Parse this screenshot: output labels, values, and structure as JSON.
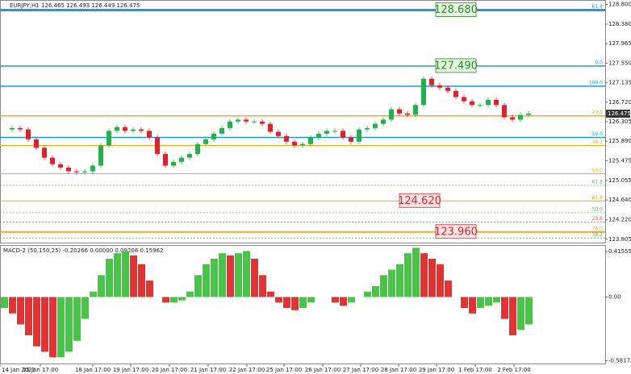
{
  "chart_data": {
    "type": "candlestick",
    "title": "EURJPY,H1  126.465 126.493 126.449 126.475",
    "close": [
      126.14,
      126.17,
      126.14,
      125.93,
      125.75,
      125.54,
      125.4,
      125.33,
      125.25,
      125.23,
      125.25,
      125.37,
      125.8,
      126.11,
      126.19,
      126.11,
      126.14,
      126.11,
      125.97,
      125.62,
      125.37,
      125.45,
      125.54,
      125.62,
      125.83,
      125.93,
      126.05,
      126.17,
      126.31,
      126.35,
      126.31,
      126.31,
      126.26,
      126.09,
      126.0,
      125.88,
      125.8,
      125.83,
      125.97,
      126.05,
      126.11,
      126.11,
      125.97,
      125.88,
      126.14,
      126.17,
      126.26,
      126.35,
      126.57,
      126.48,
      126.45,
      126.66,
      127.22,
      127.08,
      127.03,
      126.96,
      126.83,
      126.74,
      126.66,
      126.66,
      126.77,
      126.66,
      126.4,
      126.35,
      126.45,
      126.48
    ],
    "up_color": "#22b14c",
    "down_color": "#e0202a",
    "current_price": {
      "value": 126.475,
      "label": "126.475"
    },
    "ylim": [
      123.75,
      128.86
    ],
    "yticks": [
      {
        "value": 128.8,
        "label": "128.800"
      },
      {
        "value": 128.38,
        "label": "128.380"
      },
      {
        "value": 127.965,
        "label": "127.965"
      },
      {
        "value": 127.55,
        "label": "127.550"
      },
      {
        "value": 127.135,
        "label": "127.135"
      },
      {
        "value": 126.72,
        "label": "126.720"
      },
      {
        "value": 126.305,
        "label": "126.305"
      },
      {
        "value": 125.89,
        "label": "125.890"
      },
      {
        "value": 125.475,
        "label": "125.475"
      },
      {
        "value": 125.055,
        "label": "125.055"
      },
      {
        "value": 124.64,
        "label": "124.640"
      },
      {
        "value": 124.22,
        "label": "124.220"
      },
      {
        "value": 123.805,
        "label": "123.805"
      }
    ],
    "xticks": [
      {
        "value": 0,
        "label": "14 Jan 2021"
      },
      {
        "value": 5,
        "label": "15 Jan 17:00"
      },
      {
        "value": 11.5,
        "label": "18 Jan 17:00"
      },
      {
        "value": 16.2,
        "label": "19 Jan 17:00"
      },
      {
        "value": 21,
        "label": "20 Jan 17:00"
      },
      {
        "value": 25.8,
        "label": "21 Jan 17:00"
      },
      {
        "value": 30.6,
        "label": "22 Jan 17:00"
      },
      {
        "value": 35.2,
        "label": "25 Jan 17:00"
      },
      {
        "value": 40,
        "label": "26 Jan 17:00"
      },
      {
        "value": 44.7,
        "label": "27 Jan 17:00"
      },
      {
        "value": 49.4,
        "label": "28 Jan 17:00"
      },
      {
        "value": 54.1,
        "label": "29 Jan 17:00"
      },
      {
        "value": 58.9,
        "label": "1 Feb 17:00"
      },
      {
        "value": 63.7,
        "label": "2 Feb 17:00"
      }
    ],
    "levels": [
      {
        "value": 128.68,
        "color": "#1e9ad6",
        "width": 3,
        "label": "61.8",
        "box_label": "128.680",
        "box_color": "#2e8b2e"
      },
      {
        "value": 127.49,
        "color": "#1e9ad6",
        "width": 1.5,
        "label": "0.0",
        "box_label": "127.490",
        "box_color": "#2e8b2e"
      },
      {
        "value": 127.06,
        "color": "#1e9ad6",
        "width": 1.5,
        "label": "100.0"
      },
      {
        "value": 126.43,
        "color": "#f5a623",
        "width": 1.5,
        "label": "23.6"
      },
      {
        "value": 125.97,
        "color": "#1e9ad6",
        "width": 1.5,
        "label": "50.0"
      },
      {
        "value": 125.8,
        "color": "#f5a623",
        "width": 1,
        "label": "38.2"
      },
      {
        "value": 125.2,
        "color": "#f5a623",
        "width": 1,
        "label": "50.0"
      },
      {
        "value": 124.95,
        "color": "#5cb85c",
        "width": 0.8,
        "dash": true,
        "label": "61.8"
      },
      {
        "value": 124.62,
        "color": "#f5a623",
        "width": 1,
        "label": "61.8",
        "box_label": "124.620",
        "box_color": "#d62828"
      },
      {
        "value": 124.37,
        "color": "#5cb85c",
        "width": 0.8,
        "dash": true,
        "label": "50.0"
      },
      {
        "value": 124.17,
        "color": "#e05050",
        "width": 0.8,
        "dash": true,
        "label": "23.6"
      },
      {
        "value": 123.96,
        "color": "#f5a623",
        "width": 2,
        "label": "76.0",
        "box_label": "123.960",
        "box_color": "#d62828"
      },
      {
        "value": 123.83,
        "color": "#5cb85c",
        "width": 0.8,
        "dash": true,
        "label": "38.2"
      }
    ],
    "macd": {
      "title": "MACD-2 (50,150,25) -0.20266 0.00000 0.09206 0.15962",
      "values": [
        -0.1,
        -0.15,
        -0.25,
        -0.35,
        -0.45,
        -0.5,
        -0.55,
        -0.55,
        -0.5,
        -0.4,
        -0.2,
        0.05,
        0.2,
        0.35,
        0.4,
        0.42,
        0.38,
        0.3,
        0.15,
        0.0,
        -0.05,
        -0.05,
        -0.03,
        0.05,
        0.2,
        0.3,
        0.35,
        0.4,
        0.38,
        0.4,
        0.42,
        0.35,
        0.2,
        0.05,
        -0.05,
        -0.1,
        -0.12,
        -0.1,
        -0.05,
        0.0,
        0.0,
        -0.05,
        -0.08,
        -0.05,
        0.0,
        0.05,
        0.1,
        0.2,
        0.25,
        0.3,
        0.4,
        0.45,
        0.4,
        0.35,
        0.3,
        0.15,
        0.0,
        -0.1,
        -0.15,
        -0.1,
        -0.08,
        -0.05,
        -0.2,
        -0.35,
        -0.3,
        -0.25
      ],
      "ylim": [
        -0.6,
        0.46
      ],
      "yticks": [
        {
          "value": 0.41555,
          "label": "0.41555"
        },
        {
          "value": 0,
          "label": "0.00"
        },
        {
          "value": -0.58172,
          "label": "-0.58172"
        }
      ]
    }
  }
}
